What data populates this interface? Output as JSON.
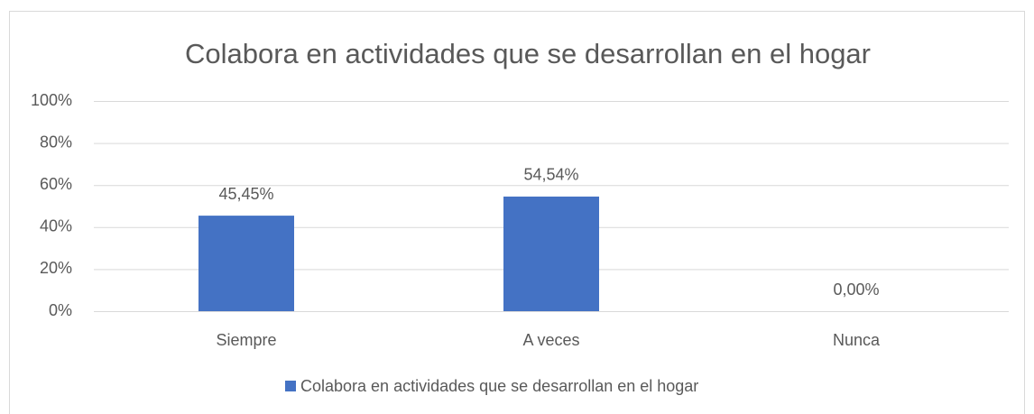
{
  "chart_data": {
    "type": "bar",
    "title": "Colabora en actividades que se desarrollan en el hogar",
    "categories": [
      "Siempre",
      "A veces",
      "Nunca"
    ],
    "series": [
      {
        "name": "Colabora en actividades que se desarrollan en el hogar",
        "color": "#4472c4",
        "values": [
          45.45,
          54.54,
          0
        ],
        "value_labels": [
          "45,45%",
          "54,54%",
          "0,00%"
        ]
      }
    ],
    "ylim": [
      0,
      100
    ],
    "yticks": [
      {
        "value": 0,
        "label": "0%"
      },
      {
        "value": 20,
        "label": "20%"
      },
      {
        "value": 40,
        "label": "40%"
      },
      {
        "value": 60,
        "label": "60%"
      },
      {
        "value": 80,
        "label": "80%"
      },
      {
        "value": 100,
        "label": "100%"
      }
    ],
    "grid": true,
    "legend": "bottom"
  }
}
